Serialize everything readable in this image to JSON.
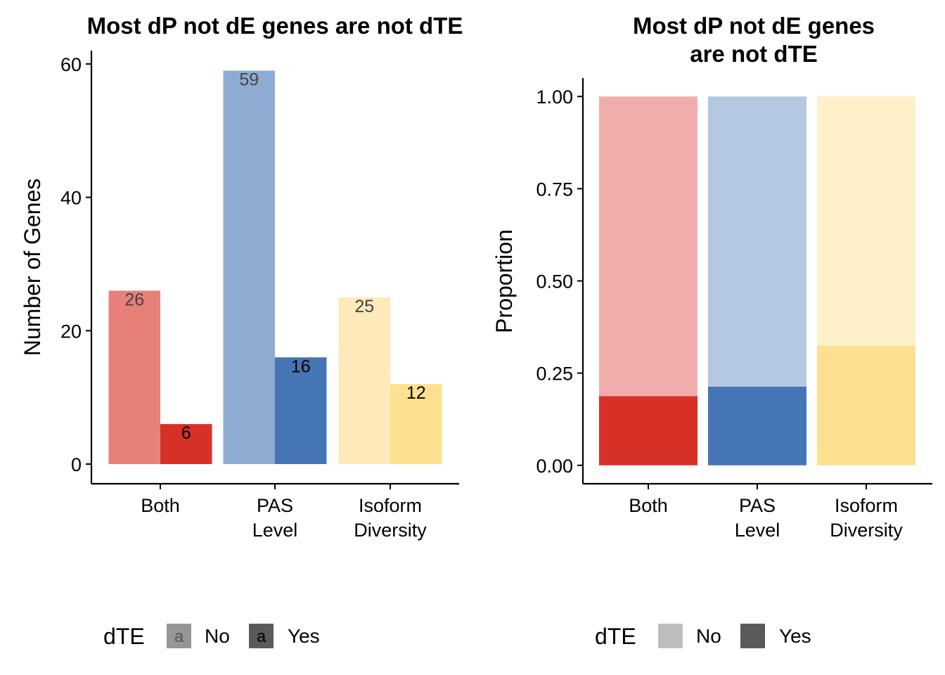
{
  "chart_data": [
    {
      "type": "bar",
      "title": "Most dP not dE genes are not dTE",
      "xlabel": "",
      "ylabel": "Number of Genes",
      "categories": [
        "Both",
        "PAS Level",
        "Isoform Diversity"
      ],
      "category_lines": [
        [
          "Both"
        ],
        [
          "PAS",
          "Level"
        ],
        [
          "Isoform",
          "Diversity"
        ]
      ],
      "series": [
        {
          "name": "No",
          "values": [
            26,
            59,
            25
          ],
          "colors": [
            "#e8807a",
            "#8eabd2",
            "#fdeaba"
          ]
        },
        {
          "name": "Yes",
          "values": [
            6,
            16,
            12
          ],
          "colors": [
            "#d73027",
            "#4575b4",
            "#fee090"
          ]
        }
      ],
      "data_labels": [
        [
          "26",
          "59",
          "25"
        ],
        [
          "6",
          "16",
          "12"
        ]
      ],
      "yticks": [
        0,
        20,
        40,
        60
      ],
      "ylim": [
        -2.95,
        62
      ],
      "grid": false,
      "legend": {
        "title": "dTE",
        "position": "bottom",
        "entries": [
          "No",
          "Yes"
        ],
        "key_glyph": "a"
      }
    },
    {
      "type": "bar",
      "stacked": true,
      "title": "Most dP not dE genes are not dTE",
      "title_lines": [
        "Most dP not dE genes",
        "are not dTE"
      ],
      "xlabel": "",
      "ylabel": "Proportion",
      "categories": [
        "Both",
        "PAS Level",
        "Isoform Diversity"
      ],
      "category_lines": [
        [
          "Both"
        ],
        [
          "PAS",
          "Level"
        ],
        [
          "Isoform",
          "Diversity"
        ]
      ],
      "series": [
        {
          "name": "Yes",
          "values": [
            0.1875,
            0.2133,
            0.3243
          ],
          "colors": [
            "#d73027",
            "#4575b4",
            "#fee090"
          ]
        },
        {
          "name": "No",
          "values": [
            0.8125,
            0.7867,
            0.6757
          ],
          "colors": [
            "#f0adab",
            "#b5c8e1",
            "#fef0ca"
          ]
        }
      ],
      "yticks": [
        "0.00",
        "0.25",
        "0.50",
        "0.75",
        "1.00"
      ],
      "ylim": [
        -0.05,
        1.05
      ],
      "grid": false,
      "legend": {
        "title": "dTE",
        "position": "bottom",
        "entries": [
          "No",
          "Yes"
        ]
      }
    }
  ]
}
